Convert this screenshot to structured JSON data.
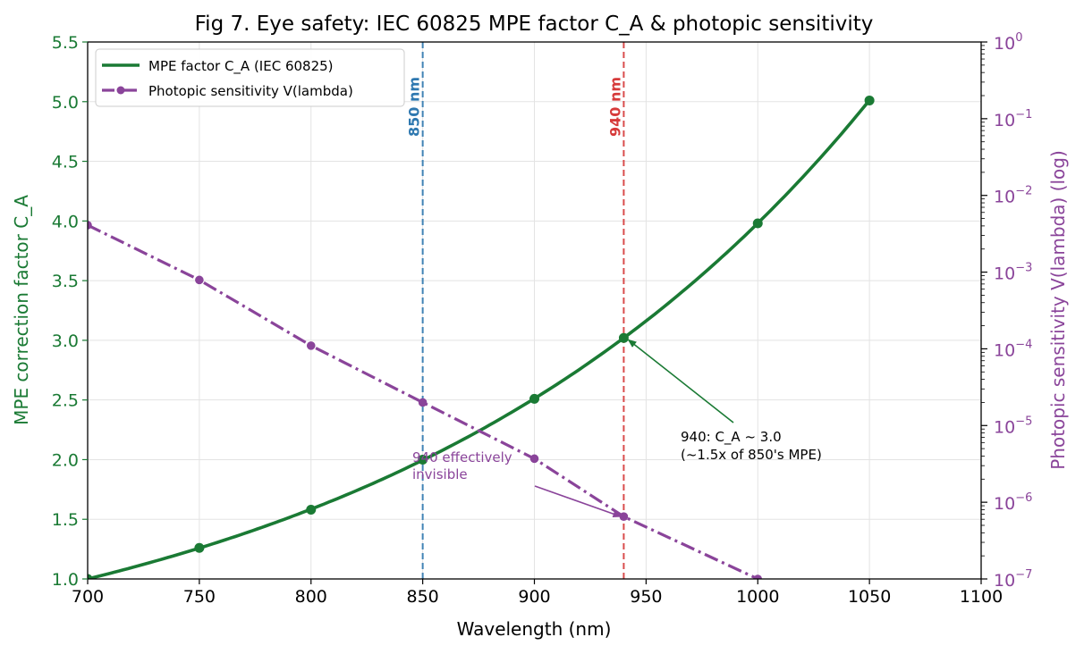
{
  "chart_data": {
    "type": "line",
    "title": "Fig 7. Eye safety: IEC 60825 MPE factor C_A & photopic sensitivity",
    "xlabel": "Wavelength (nm)",
    "ylabel_left": "MPE correction factor C_A",
    "ylabel_right": "Photopic sensitivity V(lambda)  (log)",
    "xlim": [
      700,
      1100
    ],
    "ylim_left": [
      1.0,
      5.5
    ],
    "ylim_right_log10": [
      -7,
      0
    ],
    "y_scale_right": "log",
    "grid": true,
    "legend_position": "top-left",
    "x_ticks": [
      "700",
      "750",
      "800",
      "850",
      "900",
      "950",
      "1000",
      "1050",
      "1100"
    ],
    "y_ticks_left": [
      "1.0",
      "1.5",
      "2.0",
      "2.5",
      "3.0",
      "3.5",
      "4.0",
      "4.5",
      "5.0",
      "5.5"
    ],
    "y_ticks_right": [
      {
        "base": "10",
        "exp": "−7"
      },
      {
        "base": "10",
        "exp": "−6"
      },
      {
        "base": "10",
        "exp": "−5"
      },
      {
        "base": "10",
        "exp": "−4"
      },
      {
        "base": "10",
        "exp": "−3"
      },
      {
        "base": "10",
        "exp": "−2"
      },
      {
        "base": "10",
        "exp": "−1"
      },
      {
        "base": "10",
        "exp": "0"
      }
    ],
    "series": [
      {
        "name": "MPE factor C_A (IEC 60825)",
        "axis": "left",
        "color": "#1a7a34",
        "style": "solid",
        "x": [
          700,
          750,
          800,
          850,
          900,
          940,
          1000,
          1050
        ],
        "y": [
          1.0,
          1.26,
          1.58,
          2.0,
          2.51,
          3.02,
          3.98,
          5.01
        ]
      },
      {
        "name": "Photopic sensitivity V(lambda)",
        "axis": "right",
        "color": "#8a449a",
        "style": "dashdot",
        "x": [
          700,
          750,
          800,
          850,
          900,
          940,
          1000
        ],
        "y": [
          0.0041,
          0.00079,
          0.00011,
          2e-05,
          3.7e-06,
          6.5e-07,
          1e-07
        ]
      }
    ],
    "vlines": [
      {
        "x": 850,
        "label": "850 nm",
        "color": "#2e78b0"
      },
      {
        "x": 940,
        "label": "940 nm",
        "color": "#d63a3a"
      }
    ],
    "annotations": [
      {
        "lines": [
          "940: C_A ~ 3.0",
          "(~1.5x of 850's MPE)"
        ],
        "color": "#000000",
        "arrow_color": "#1a7a34",
        "target": {
          "x": 940,
          "y": 3.02
        }
      },
      {
        "lines": [
          "940 effectively",
          "invisible"
        ],
        "color": "#8a449a",
        "arrow_color": "#8a449a",
        "target": {
          "x": 940,
          "y": 6.5e-07
        }
      }
    ]
  }
}
